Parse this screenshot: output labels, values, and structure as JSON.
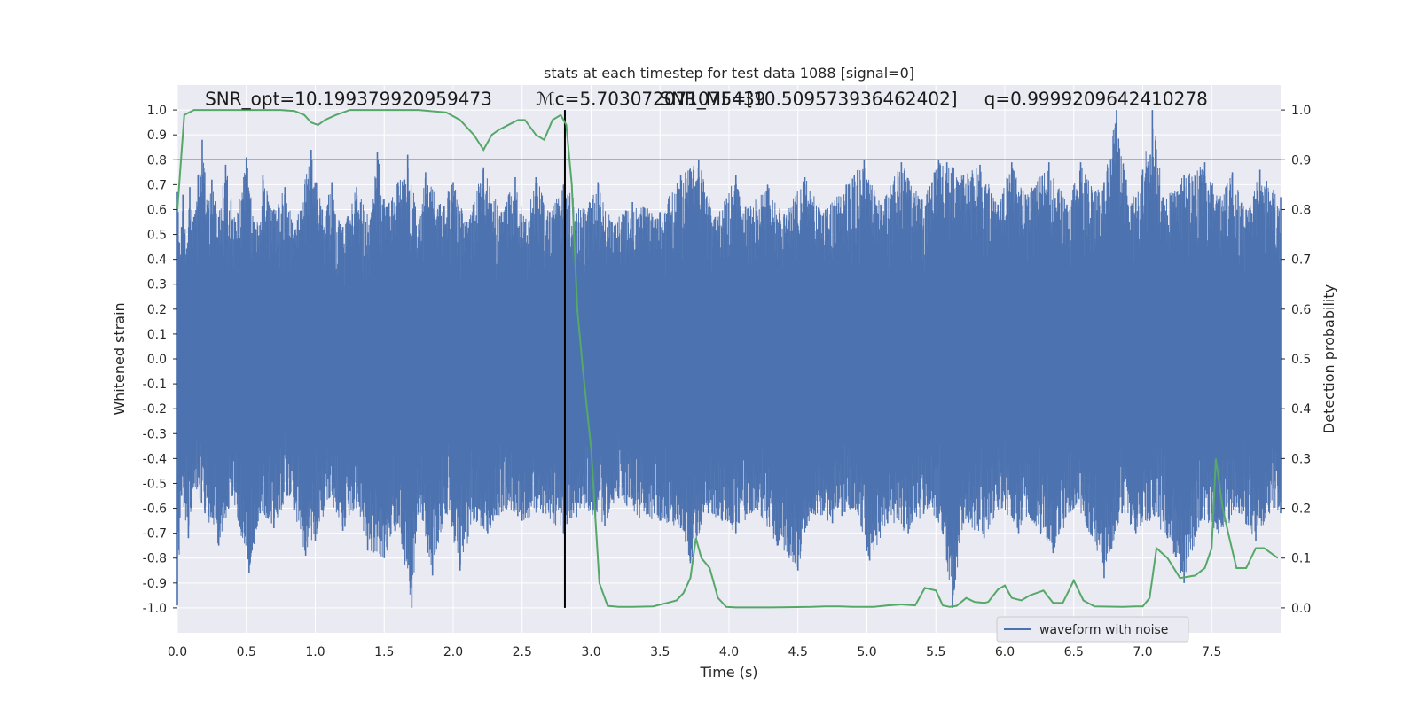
{
  "chart_data": {
    "type": "line",
    "title": "stats at each timestep for test data 1088 [signal=0]",
    "xlabel": "Time (s)",
    "ylabel_left": "Whitened strain",
    "ylabel_right": "Detection probability",
    "xlim": [
      0.0,
      8.0
    ],
    "ylim_left": [
      -1.1,
      1.1
    ],
    "ylim_right": [
      -0.05,
      1.05
    ],
    "x_ticks": [
      "0.0",
      "0.5",
      "1.0",
      "1.5",
      "2.0",
      "2.5",
      "3.0",
      "3.5",
      "4.0",
      "4.5",
      "5.0",
      "5.5",
      "6.0",
      "6.5",
      "7.0",
      "7.5"
    ],
    "y_left_ticks": [
      "1.0",
      "0.9",
      "0.8",
      "0.7",
      "0.6",
      "0.5",
      "0.4",
      "0.3",
      "0.2",
      "0.1",
      "0.0",
      "-0.1",
      "-0.2",
      "-0.3",
      "-0.4",
      "-0.5",
      "-0.6",
      "-0.7",
      "-0.8",
      "-0.9",
      "-1.0"
    ],
    "y_right_ticks": [
      "1.0",
      "0.9",
      "0.8",
      "0.7",
      "0.6",
      "0.5",
      "0.4",
      "0.3",
      "0.2",
      "0.1",
      "0.0"
    ],
    "grid": true,
    "legend": {
      "placement": "lower-right",
      "entries": [
        "waveform with noise"
      ]
    },
    "annotations": [
      {
        "text": "SNR_opt=10.199379920959473",
        "x": 0.2,
        "y": 1.02
      },
      {
        "text": "ℳc=5.703072071075439",
        "x": 2.6,
        "y": 1.02
      },
      {
        "text": "SNR_MF=[10.509573936462402]",
        "x": 3.5,
        "y": 1.02
      },
      {
        "text": "q=0.9999209642410278",
        "x": 5.85,
        "y": 1.02
      }
    ],
    "threshold_line": {
      "y": 0.8,
      "color": "#c44e52"
    },
    "marker_line": {
      "x": 2.81,
      "y_range": [
        -1.0,
        1.0
      ],
      "color": "#000000"
    },
    "series": [
      {
        "name": "waveform with noise",
        "color": "#4c72b0",
        "axis": "left",
        "envelope_pos": [
          [
            0.0,
            0.67
          ],
          [
            0.03,
            0.53
          ],
          [
            0.04,
            0.66
          ],
          [
            0.07,
            0.44
          ],
          [
            0.09,
            0.69
          ],
          [
            0.12,
            0.57
          ],
          [
            0.15,
            0.74
          ],
          [
            0.18,
            0.88
          ],
          [
            0.22,
            0.62
          ],
          [
            0.25,
            0.72
          ],
          [
            0.3,
            0.57
          ],
          [
            0.35,
            0.78
          ],
          [
            0.42,
            0.55
          ],
          [
            0.5,
            0.81
          ],
          [
            0.57,
            0.52
          ],
          [
            0.62,
            0.74
          ],
          [
            0.7,
            0.6
          ],
          [
            0.78,
            0.69
          ],
          [
            0.85,
            0.52
          ],
          [
            0.97,
            0.84
          ],
          [
            1.05,
            0.6
          ],
          [
            1.12,
            0.71
          ],
          [
            1.2,
            0.53
          ],
          [
            1.3,
            0.69
          ],
          [
            1.4,
            0.56
          ],
          [
            1.45,
            0.83
          ],
          [
            1.52,
            0.61
          ],
          [
            1.6,
            0.71
          ],
          [
            1.67,
            0.82
          ],
          [
            1.75,
            0.54
          ],
          [
            1.8,
            0.75
          ],
          [
            1.9,
            0.62
          ],
          [
            2.0,
            0.71
          ],
          [
            2.1,
            0.55
          ],
          [
            2.22,
            0.77
          ],
          [
            2.35,
            0.59
          ],
          [
            2.45,
            0.73
          ],
          [
            2.52,
            0.55
          ],
          [
            2.6,
            0.73
          ],
          [
            2.7,
            0.59
          ],
          [
            2.8,
            0.7
          ],
          [
            2.95,
            0.6
          ],
          [
            3.05,
            0.71
          ],
          [
            3.15,
            0.55
          ],
          [
            3.3,
            0.63
          ],
          [
            3.5,
            0.59
          ],
          [
            3.65,
            0.74
          ],
          [
            3.78,
            0.8
          ],
          [
            3.9,
            0.57
          ],
          [
            4.05,
            0.74
          ],
          [
            4.12,
            0.61
          ],
          [
            4.28,
            0.7
          ],
          [
            4.4,
            0.58
          ],
          [
            4.55,
            0.73
          ],
          [
            4.7,
            0.6
          ],
          [
            4.85,
            0.7
          ],
          [
            4.98,
            0.8
          ],
          [
            5.1,
            0.62
          ],
          [
            5.25,
            0.79
          ],
          [
            5.4,
            0.64
          ],
          [
            5.52,
            0.8
          ],
          [
            5.58,
            0.79
          ],
          [
            5.7,
            0.74
          ],
          [
            5.82,
            0.78
          ],
          [
            5.95,
            0.62
          ],
          [
            6.05,
            0.79
          ],
          [
            6.15,
            0.66
          ],
          [
            6.32,
            0.79
          ],
          [
            6.45,
            0.62
          ],
          [
            6.55,
            0.79
          ],
          [
            6.65,
            0.67
          ],
          [
            6.72,
            0.71
          ],
          [
            6.81,
            1.0
          ],
          [
            6.88,
            0.72
          ],
          [
            6.95,
            0.65
          ],
          [
            7.0,
            0.76
          ],
          [
            7.07,
            1.0
          ],
          [
            7.15,
            0.65
          ],
          [
            7.3,
            0.74
          ],
          [
            7.45,
            0.79
          ],
          [
            7.55,
            0.64
          ],
          [
            7.65,
            0.75
          ],
          [
            7.75,
            0.6
          ],
          [
            7.85,
            0.76
          ],
          [
            7.95,
            0.68
          ],
          [
            8.0,
            0.65
          ]
        ],
        "envelope_neg": [
          [
            0.0,
            -0.99
          ],
          [
            0.03,
            -0.55
          ],
          [
            0.08,
            -0.72
          ],
          [
            0.12,
            -0.5
          ],
          [
            0.2,
            -0.62
          ],
          [
            0.3,
            -0.75
          ],
          [
            0.4,
            -0.55
          ],
          [
            0.52,
            -0.86
          ],
          [
            0.6,
            -0.62
          ],
          [
            0.7,
            -0.68
          ],
          [
            0.8,
            -0.55
          ],
          [
            0.93,
            -0.79
          ],
          [
            1.0,
            -0.73
          ],
          [
            1.1,
            -0.56
          ],
          [
            1.2,
            -0.69
          ],
          [
            1.3,
            -0.6
          ],
          [
            1.38,
            -0.77
          ],
          [
            1.5,
            -0.8
          ],
          [
            1.6,
            -0.66
          ],
          [
            1.7,
            -1.0
          ],
          [
            1.75,
            -0.6
          ],
          [
            1.85,
            -0.87
          ],
          [
            1.95,
            -0.62
          ],
          [
            2.05,
            -0.85
          ],
          [
            2.15,
            -0.65
          ],
          [
            2.25,
            -0.7
          ],
          [
            2.38,
            -0.6
          ],
          [
            2.5,
            -0.65
          ],
          [
            2.65,
            -0.62
          ],
          [
            2.8,
            -0.7
          ],
          [
            2.95,
            -0.6
          ],
          [
            3.1,
            -0.67
          ],
          [
            3.2,
            -0.56
          ],
          [
            3.35,
            -0.64
          ],
          [
            3.5,
            -0.65
          ],
          [
            3.65,
            -0.68
          ],
          [
            3.72,
            -0.82
          ],
          [
            3.85,
            -0.62
          ],
          [
            3.95,
            -0.65
          ],
          [
            4.05,
            -0.7
          ],
          [
            4.2,
            -0.6
          ],
          [
            4.35,
            -0.75
          ],
          [
            4.5,
            -0.85
          ],
          [
            4.6,
            -0.62
          ],
          [
            4.75,
            -0.66
          ],
          [
            4.9,
            -0.6
          ],
          [
            5.02,
            -0.81
          ],
          [
            5.15,
            -0.66
          ],
          [
            5.3,
            -0.7
          ],
          [
            5.45,
            -0.6
          ],
          [
            5.55,
            -0.7
          ],
          [
            5.62,
            -1.0
          ],
          [
            5.7,
            -0.66
          ],
          [
            5.85,
            -0.72
          ],
          [
            5.98,
            -0.6
          ],
          [
            6.1,
            -0.7
          ],
          [
            6.2,
            -0.65
          ],
          [
            6.35,
            -0.78
          ],
          [
            6.5,
            -0.6
          ],
          [
            6.6,
            -0.68
          ],
          [
            6.72,
            -0.88
          ],
          [
            6.85,
            -0.62
          ],
          [
            6.95,
            -0.7
          ],
          [
            7.05,
            -0.65
          ],
          [
            7.18,
            -0.72
          ],
          [
            7.3,
            -0.9
          ],
          [
            7.42,
            -0.65
          ],
          [
            7.55,
            -0.7
          ],
          [
            7.7,
            -0.62
          ],
          [
            7.82,
            -0.73
          ],
          [
            7.95,
            -0.6
          ],
          [
            8.0,
            -0.62
          ]
        ]
      },
      {
        "name": "",
        "color": "#55a868",
        "axis": "right",
        "x": [
          0.0,
          0.05,
          0.12,
          0.25,
          0.5,
          0.75,
          0.85,
          0.92,
          0.97,
          1.02,
          1.07,
          1.15,
          1.25,
          1.5,
          1.75,
          1.95,
          2.05,
          2.15,
          2.22,
          2.28,
          2.33,
          2.4,
          2.47,
          2.52,
          2.6,
          2.66,
          2.72,
          2.78,
          2.82,
          2.86,
          2.9,
          2.94,
          3.0,
          3.06,
          3.12,
          3.2,
          3.3,
          3.45,
          3.55,
          3.62,
          3.67,
          3.72,
          3.76,
          3.8,
          3.86,
          3.92,
          3.98,
          4.05,
          4.1,
          4.3,
          4.6,
          4.7,
          4.8,
          4.9,
          5.05,
          5.15,
          5.25,
          5.35,
          5.42,
          5.5,
          5.55,
          5.6,
          5.65,
          5.72,
          5.78,
          5.85,
          5.88,
          5.95,
          6.0,
          6.05,
          6.12,
          6.18,
          6.28,
          6.35,
          6.42,
          6.5,
          6.57,
          6.65,
          6.85,
          6.95,
          7.0,
          7.05,
          7.1,
          7.18,
          7.27,
          7.38,
          7.45,
          7.5,
          7.53,
          7.58,
          7.62,
          7.68,
          7.75,
          7.82,
          7.88,
          7.93,
          7.98
        ],
        "y": [
          0.8,
          0.99,
          1.0,
          1.0,
          1.0,
          1.0,
          0.998,
          0.99,
          0.975,
          0.97,
          0.98,
          0.99,
          1.0,
          1.0,
          1.0,
          0.995,
          0.98,
          0.95,
          0.92,
          0.95,
          0.96,
          0.97,
          0.98,
          0.98,
          0.95,
          0.94,
          0.98,
          0.99,
          0.97,
          0.85,
          0.6,
          0.48,
          0.32,
          0.05,
          0.004,
          0.002,
          0.002,
          0.003,
          0.01,
          0.015,
          0.03,
          0.06,
          0.14,
          0.1,
          0.08,
          0.02,
          0.002,
          0.001,
          0.001,
          0.001,
          0.002,
          0.003,
          0.003,
          0.002,
          0.002,
          0.005,
          0.007,
          0.005,
          0.04,
          0.035,
          0.005,
          0.002,
          0.004,
          0.02,
          0.012,
          0.01,
          0.012,
          0.037,
          0.045,
          0.02,
          0.015,
          0.025,
          0.035,
          0.01,
          0.01,
          0.055,
          0.015,
          0.003,
          0.002,
          0.003,
          0.003,
          0.02,
          0.12,
          0.1,
          0.06,
          0.065,
          0.08,
          0.12,
          0.3,
          0.2,
          0.15,
          0.08,
          0.08,
          0.12,
          0.12,
          0.11,
          0.1
        ]
      }
    ]
  }
}
